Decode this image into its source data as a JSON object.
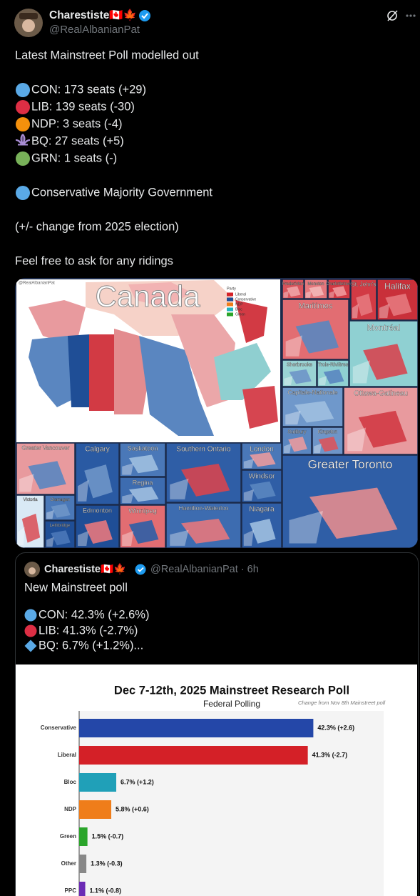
{
  "tweet": {
    "author": {
      "name": "Charestiste🇨🇦🍁",
      "handle": "@RealAlbanianPat"
    },
    "lines": [
      "Latest Mainstreet Poll modelled out",
      "CON: 173 seats (+29)",
      "LIB: 139 seats (-30)",
      "NDP: 3 seats (-4)",
      "BQ: 27 seats (+5)",
      "GRN: 1 seats (-)",
      "Conservative Majority Government",
      "(+/- change from 2025 election)",
      "Feel free to ask for any ridings"
    ]
  },
  "map": {
    "title": "Canada",
    "watermark": "@RealAlbanianPat",
    "legend": {
      "title": "Party",
      "items": [
        "Liberal",
        "Conservative",
        "NDP",
        "Bloc",
        "Green"
      ]
    },
    "panels": [
      "Fredericton",
      "Moncton",
      "Charlottetown",
      "St. John's",
      "Halifax",
      "Maritimes",
      "Montréal",
      "Sherbrooke",
      "Trois-Rivières",
      "Capitale-Nationale",
      "Ottawa-Gatineau",
      "Sudbury",
      "Kingston",
      "Greater Toronto",
      "Greater Vancouver",
      "Victoria",
      "Okanagan",
      "Lethbridge",
      "Calgary",
      "Edmonton",
      "Saskatoon",
      "Regina",
      "Winnipeg",
      "Southern Ontario",
      "Hamilton-Waterloo",
      "London",
      "Windsor",
      "Niagara"
    ]
  },
  "quote": {
    "author": {
      "name": "Charestiste🇨🇦🍁",
      "meta": "@RealAlbanianPat · 6h"
    },
    "lines": [
      "New Mainstreet poll",
      "CON: 42.3% (+2.6%)",
      "LIB: 41.3% (-2.7%)",
      "BQ: 6.7% (+1.2%)..."
    ],
    "chart": {
      "type": "bar",
      "orientation": "horizontal",
      "title": "Dec 7-12th, 2025 Mainstreet Research Poll",
      "subtitle": "Federal Polling",
      "note": "Change from Nov 8th Mainstreet poll",
      "categories": [
        "Conservative",
        "Liberal",
        "Bloc",
        "NDP",
        "Green",
        "Other",
        "PPC"
      ],
      "values": [
        42.3,
        41.3,
        6.7,
        5.8,
        1.5,
        1.3,
        1.1
      ],
      "value_labels": [
        "42.3% (+2.6)",
        "41.3% (-2.7)",
        "6.7% (+1.2)",
        "5.8% (+0.6)",
        "1.5% (-0.7)",
        "1.3% (-0.3)",
        "1.1% (-0.8)"
      ],
      "colors": [
        "#2447a8",
        "#d42027",
        "#20a0b8",
        "#ef7d1a",
        "#2aa52a",
        "#888888",
        "#6c2bb5"
      ],
      "xlim": [
        0,
        55
      ]
    }
  }
}
